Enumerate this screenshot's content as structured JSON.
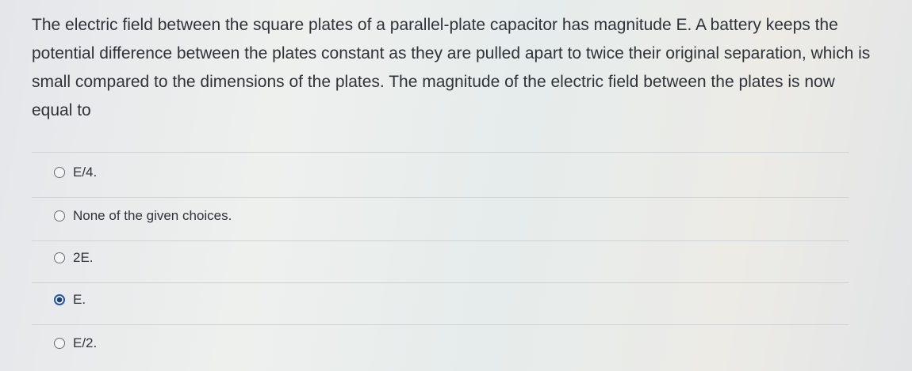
{
  "question": "The electric field between the square plates of a parallel-plate capacitor has magnitude E. A battery keeps the potential difference between the plates constant as they are pulled apart to twice their original separation, which is small compared to the dimensions of the plates. The magnitude of the electric field between the plates is now equal to",
  "options": [
    "E/4.",
    "None of the given choices.",
    "2E.",
    "E.",
    "E/2."
  ]
}
